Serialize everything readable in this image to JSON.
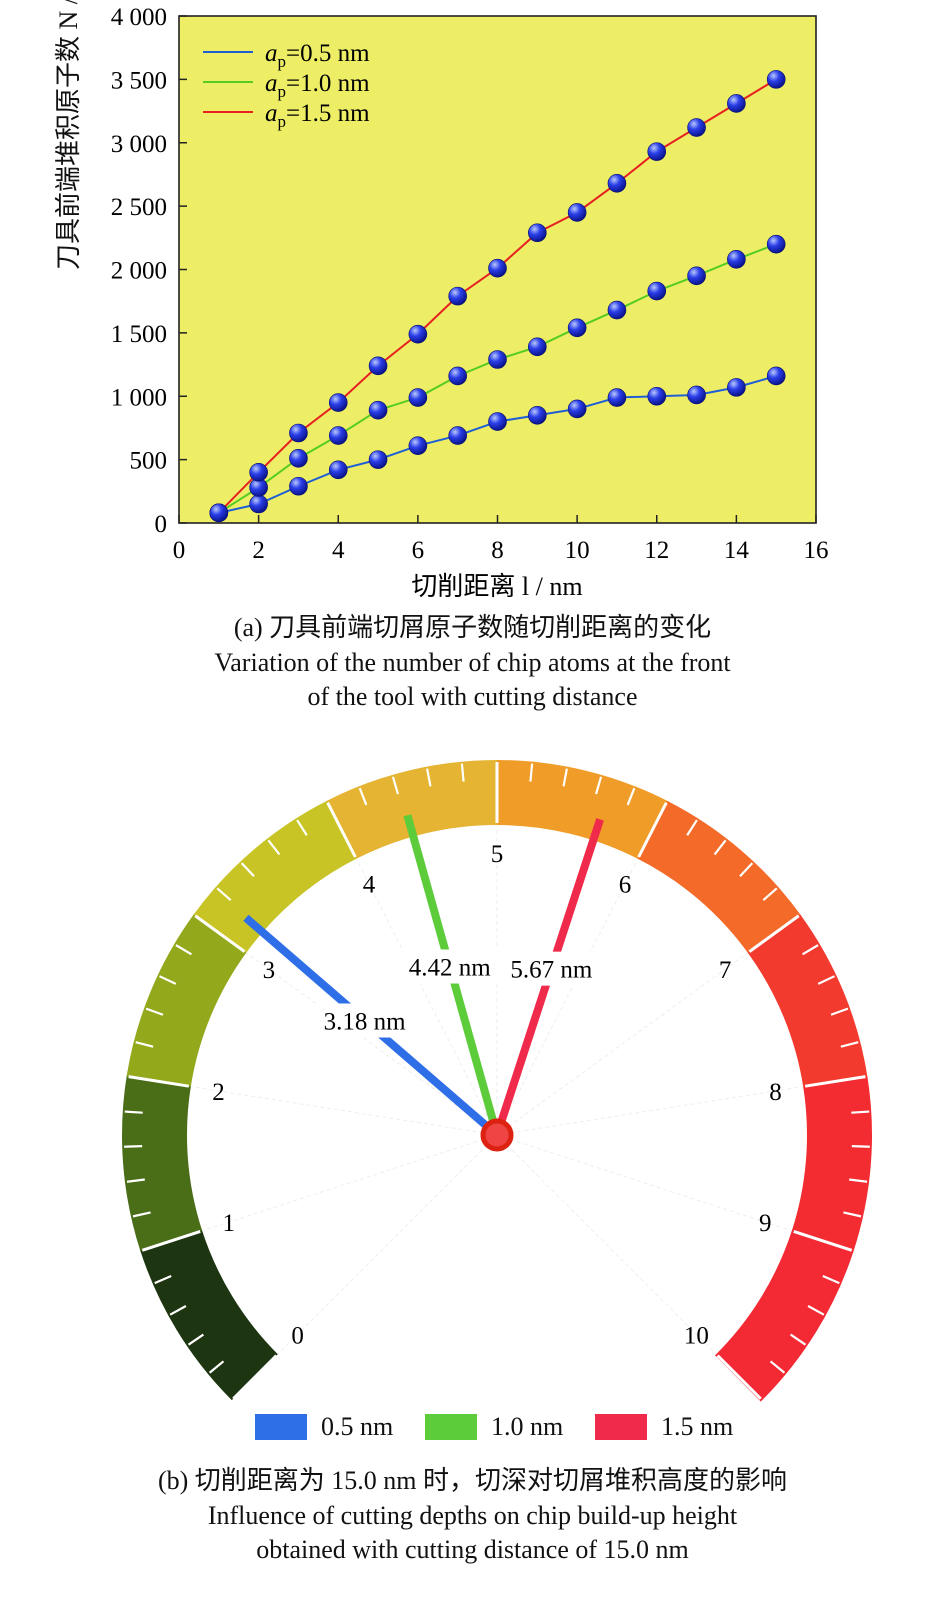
{
  "chart_data": [
    {
      "type": "line",
      "caption_cn": "(a) 刀具前端切屑原子数随切削距离的变化",
      "caption_en_1": "Variation of the number of chip atoms at the front",
      "caption_en_2": "of the tool with cutting distance",
      "xlabel": "切削距离 l / nm",
      "ylabel": "刀具前端堆积原子数 N / 个",
      "xlim": [
        0,
        16
      ],
      "ylim": [
        0,
        4000
      ],
      "xticks": [
        "0",
        "2",
        "4",
        "6",
        "8",
        "10",
        "12",
        "14",
        "16"
      ],
      "yticks": [
        "0",
        "500",
        "1 000",
        "1 500",
        "2 000",
        "2 500",
        "3 000",
        "3 500",
        "4 000"
      ],
      "background": "#eeee66",
      "legend_position": "top-left",
      "series": [
        {
          "name": "ap=0.5 nm",
          "color": "#1f5fd6",
          "x": [
            1,
            2,
            3,
            4,
            5,
            6,
            7,
            8,
            9,
            10,
            11,
            12,
            13,
            14,
            15
          ],
          "values": [
            80,
            150,
            290,
            420,
            500,
            610,
            690,
            800,
            850,
            900,
            990,
            1000,
            1010,
            1070,
            1160
          ]
        },
        {
          "name": "ap=1.0 nm",
          "color": "#55cc22",
          "x": [
            1,
            2,
            3,
            4,
            5,
            6,
            7,
            8,
            9,
            10,
            11,
            12,
            13,
            14,
            15
          ],
          "values": [
            80,
            280,
            510,
            690,
            890,
            990,
            1160,
            1290,
            1390,
            1540,
            1680,
            1830,
            1950,
            2080,
            2200
          ]
        },
        {
          "name": "ap=1.5 nm",
          "color": "#e62020",
          "x": [
            1,
            2,
            3,
            4,
            5,
            6,
            7,
            8,
            9,
            10,
            11,
            12,
            13,
            14,
            15
          ],
          "values": [
            80,
            400,
            710,
            950,
            1240,
            1490,
            1790,
            2010,
            2290,
            2450,
            2680,
            2930,
            3120,
            3310,
            3500
          ]
        }
      ]
    },
    {
      "type": "gauge",
      "caption_cn": "(b) 切削距离为 15.0 nm 时，切深对切屑堆积高度的影响",
      "caption_en_1": "Influence of cutting depths on chip build-up height",
      "caption_en_2": "obtained with cutting distance of 15.0 nm",
      "scale_min": 0,
      "scale_max": 10,
      "tick_labels": [
        "0",
        "1",
        "2",
        "3",
        "4",
        "5",
        "6",
        "7",
        "8",
        "9",
        "10"
      ],
      "needles": [
        {
          "name": "0.5 nm",
          "value": 3.18,
          "label": "3.18 nm",
          "color": "#2e6fe8"
        },
        {
          "name": "1.0 nm",
          "value": 4.42,
          "label": "4.42 nm",
          "color": "#5ccc3a"
        },
        {
          "name": "1.5 nm",
          "value": 5.67,
          "label": "5.67 nm",
          "color": "#f02a4a"
        }
      ],
      "band_colors": [
        "#1d3510",
        "#4a6d18",
        "#93a81a",
        "#c8c425",
        "#e4b432",
        "#f09c28",
        "#f46a28",
        "#f33a2e",
        "#f22c30",
        "#f32a34"
      ]
    }
  ]
}
